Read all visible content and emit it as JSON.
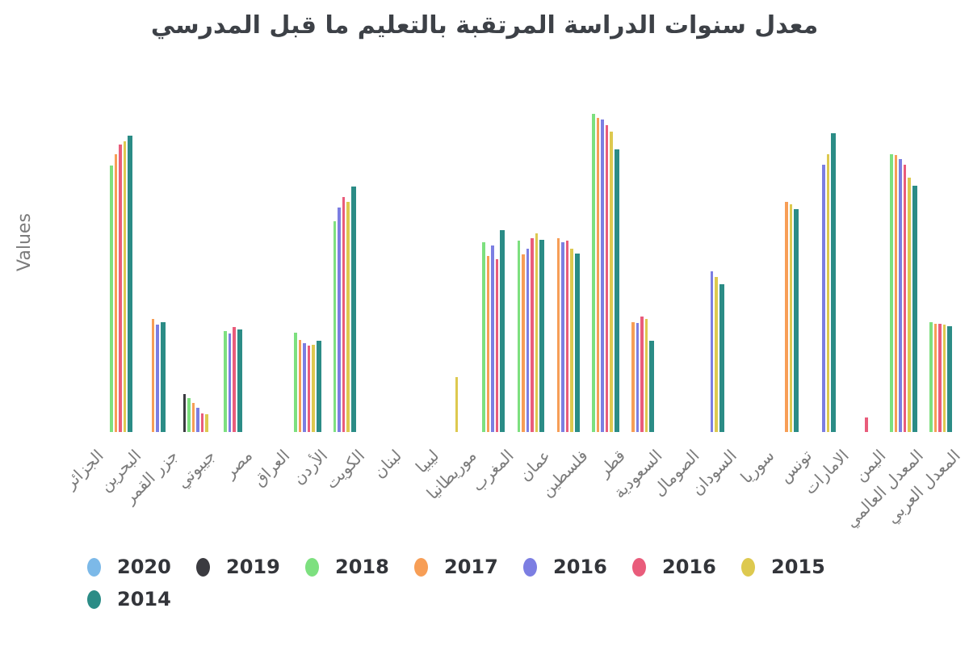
{
  "title": "معدل سنوات الدراسة المرتقبة بالتعليم ما قبل المدرسي",
  "ylabel": "Values",
  "chart_data": {
    "type": "bar",
    "title": "معدل سنوات الدراسة المرتقبة بالتعليم ما قبل المدرسي",
    "xlabel": "",
    "ylabel": "Values",
    "ylim": [
      0,
      3.2
    ],
    "grid": false,
    "y_tick_labels_visible": false,
    "legend_position": "bottom",
    "categories": [
      "الجزائر",
      "البحرين",
      "جزر القمر",
      "جيبوتي",
      "مصر",
      "العراق",
      "الأردن",
      "الكويت",
      "لبنان",
      "ليبيا",
      "موريطانيا",
      "المغرب",
      "عمان",
      "فلسطين",
      "قطر",
      "السعودية",
      "الصومال",
      "السودان",
      "سوريا",
      "تونس",
      "الامارات",
      "اليمن",
      "المعدل العالمي",
      "المعدل العربي"
    ],
    "series": [
      {
        "name": "2020",
        "color": "#7cb9e8",
        "values": [
          null,
          null,
          null,
          null,
          null,
          null,
          null,
          null,
          null,
          null,
          null,
          null,
          null,
          null,
          null,
          null,
          null,
          null,
          null,
          null,
          null,
          null,
          null,
          null
        ]
      },
      {
        "name": "2019",
        "color": "#3b3b40",
        "values": [
          null,
          null,
          null,
          0.36,
          null,
          null,
          null,
          null,
          null,
          null,
          null,
          null,
          null,
          null,
          null,
          null,
          null,
          null,
          null,
          null,
          null,
          null,
          null,
          null
        ]
      },
      {
        "name": "2018",
        "color": "#7de07f",
        "values": [
          null,
          2.54,
          null,
          0.32,
          0.96,
          null,
          0.95,
          2.01,
          null,
          null,
          null,
          1.81,
          1.82,
          null,
          3.03,
          null,
          null,
          null,
          null,
          null,
          null,
          null,
          2.65,
          1.05
        ]
      },
      {
        "name": "2017",
        "color": "#f79e56",
        "values": [
          null,
          2.65,
          1.08,
          0.28,
          null,
          null,
          0.88,
          null,
          null,
          null,
          null,
          1.68,
          1.69,
          1.85,
          2.99,
          1.05,
          null,
          null,
          null,
          2.19,
          null,
          null,
          2.64,
          1.03
        ]
      },
      {
        "name": "2016",
        "color": "#7c7ee2",
        "values": [
          null,
          null,
          1.02,
          0.23,
          0.94,
          null,
          0.85,
          2.14,
          null,
          null,
          null,
          1.78,
          1.75,
          1.81,
          2.98,
          1.04,
          null,
          1.53,
          null,
          null,
          2.55,
          null,
          2.6,
          null
        ]
      },
      {
        "name": "2016",
        "color": "#e95c7b",
        "values": [
          null,
          2.74,
          null,
          0.18,
          1.0,
          null,
          0.82,
          2.24,
          null,
          null,
          null,
          1.65,
          1.85,
          1.82,
          2.92,
          1.1,
          null,
          null,
          null,
          null,
          null,
          0.14,
          2.55,
          1.03
        ]
      },
      {
        "name": "2015",
        "color": "#ddc94f",
        "values": [
          null,
          2.77,
          null,
          0.17,
          null,
          null,
          0.83,
          2.19,
          null,
          null,
          0.52,
          null,
          1.89,
          1.75,
          2.86,
          1.08,
          null,
          1.48,
          null,
          2.17,
          2.65,
          null,
          2.42,
          1.02
        ]
      },
      {
        "name": "2014",
        "color": "#2b8c86",
        "values": [
          null,
          2.82,
          1.05,
          null,
          0.98,
          null,
          0.87,
          2.34,
          null,
          null,
          null,
          1.92,
          1.83,
          1.7,
          2.69,
          0.87,
          null,
          1.41,
          null,
          2.12,
          2.85,
          null,
          2.35,
          1.01
        ]
      }
    ]
  }
}
